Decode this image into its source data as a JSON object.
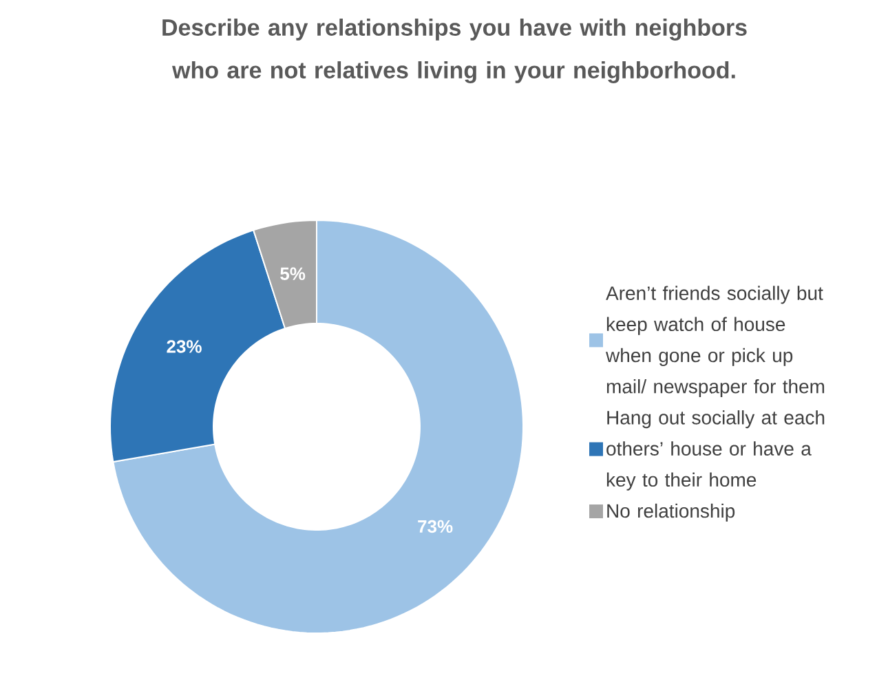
{
  "chart_data": {
    "type": "donut",
    "title": "Describe any relationships you have with neighbors who are not relatives living in your neighborhood.",
    "categories": [
      "Aren’t friends socially but keep watch of house when gone or pick up mail/ newspaper for them",
      "Hang out socially at each others’ house or have a key to their home",
      "No relationship"
    ],
    "values": [
      73,
      23,
      5
    ],
    "colors": [
      "#9dc3e6",
      "#2e75b6",
      "#a5a5a5"
    ],
    "value_labels": [
      "73%",
      "23%",
      "5%"
    ],
    "legend": "right"
  }
}
